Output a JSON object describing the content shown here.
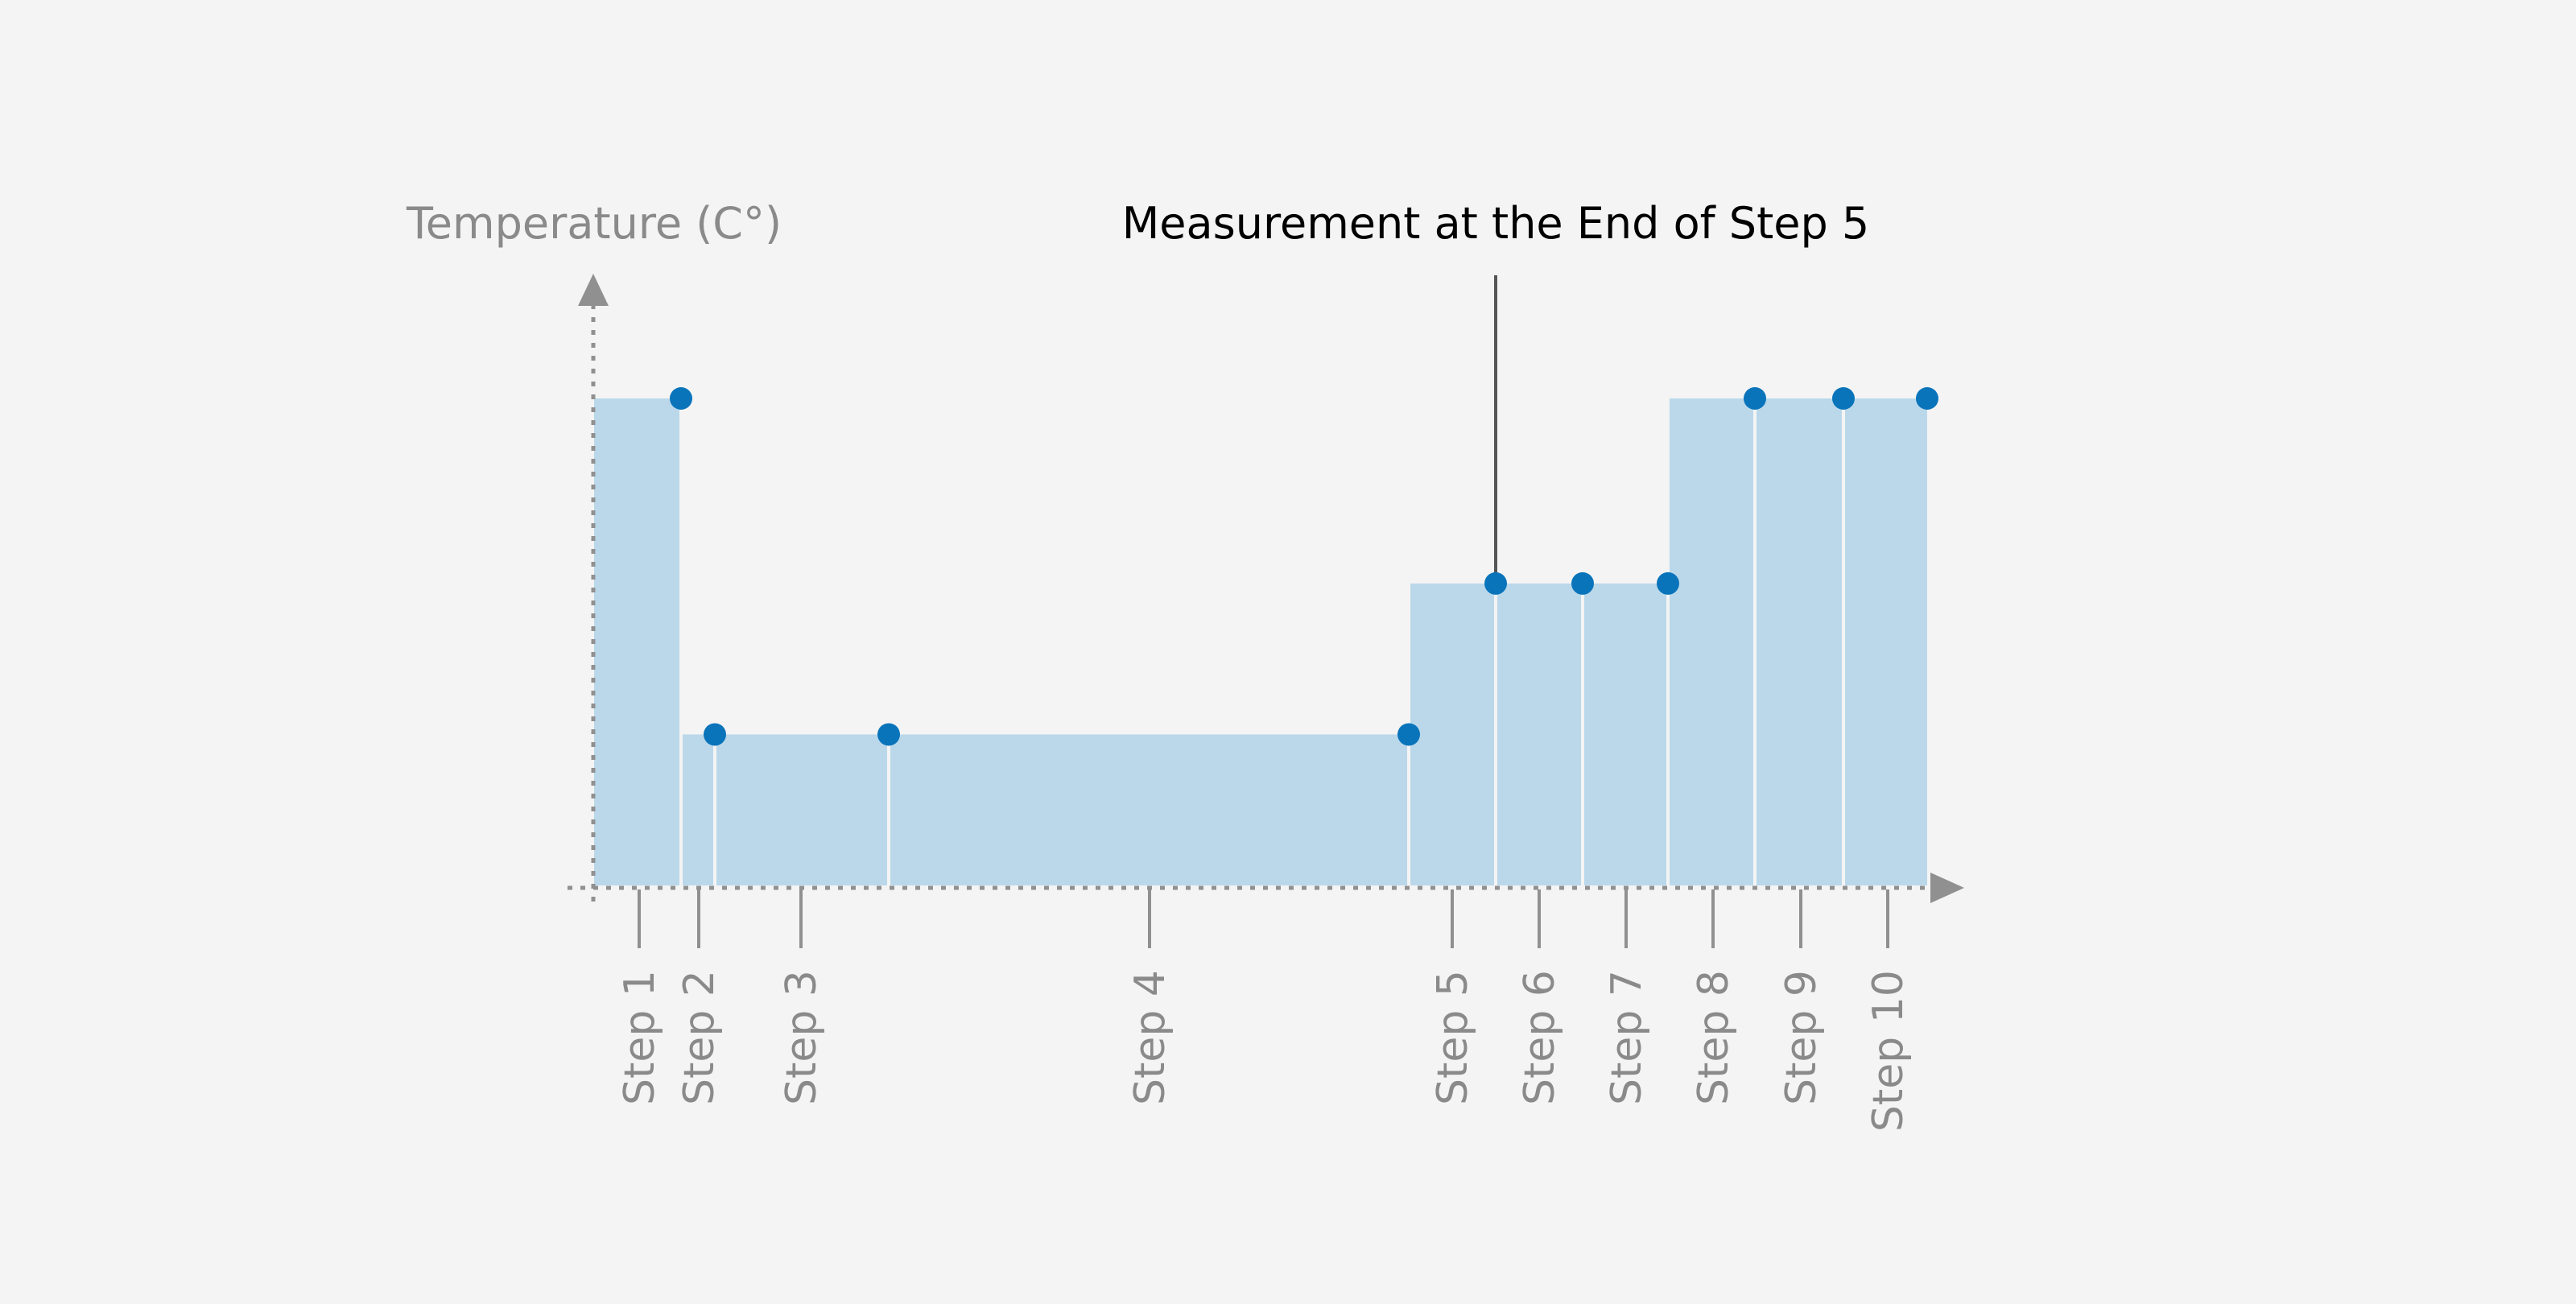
{
  "y_axis_label": "Temperature (C°)",
  "annotation": {
    "text": "Measurement at the End of Step 5",
    "step": 5
  },
  "steps": [
    {
      "label": "Step 1"
    },
    {
      "label": "Step 2"
    },
    {
      "label": "Step 3"
    },
    {
      "label": "Step 4"
    },
    {
      "label": "Step 5"
    },
    {
      "label": "Step 6"
    },
    {
      "label": "Step 7"
    },
    {
      "label": "Step 8"
    },
    {
      "label": "Step 9"
    },
    {
      "label": "Step 10"
    }
  ],
  "temperature_levels": {
    "high": 1.0,
    "medium": 0.62,
    "low": 0.31
  },
  "segments": [
    {
      "level": "high",
      "steps": [
        1
      ]
    },
    {
      "level": "low",
      "steps": [
        2,
        3,
        4
      ]
    },
    {
      "level": "medium",
      "steps": [
        5,
        6,
        7
      ]
    },
    {
      "level": "high",
      "steps": [
        8,
        9,
        10
      ]
    }
  ],
  "colors": {
    "area_fill": "#bad8ea",
    "marker": "#0a74bb",
    "axis": "#909090",
    "divider": "#f4f4f4",
    "annotation_line": "#555555"
  }
}
